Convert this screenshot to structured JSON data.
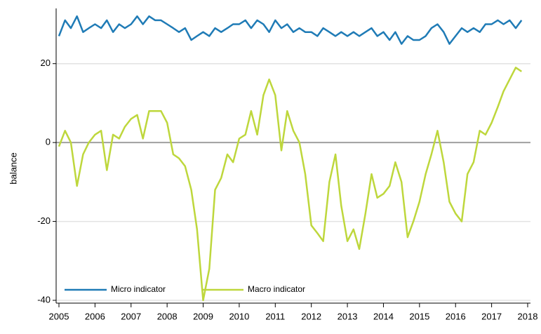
{
  "chart_data": {
    "type": "line",
    "y_label": "balance",
    "x": [
      2005.0,
      2005.17,
      2005.33,
      2005.5,
      2005.67,
      2005.83,
      2006.0,
      2006.17,
      2006.33,
      2006.5,
      2006.67,
      2006.83,
      2007.0,
      2007.17,
      2007.33,
      2007.5,
      2007.67,
      2007.83,
      2008.0,
      2008.17,
      2008.33,
      2008.5,
      2008.67,
      2008.83,
      2009.0,
      2009.17,
      2009.33,
      2009.5,
      2009.67,
      2009.83,
      2010.0,
      2010.17,
      2010.33,
      2010.5,
      2010.67,
      2010.83,
      2011.0,
      2011.17,
      2011.33,
      2011.5,
      2011.67,
      2011.83,
      2012.0,
      2012.17,
      2012.33,
      2012.5,
      2012.67,
      2012.83,
      2013.0,
      2013.17,
      2013.33,
      2013.5,
      2013.67,
      2013.83,
      2014.0,
      2014.17,
      2014.33,
      2014.5,
      2014.67,
      2014.83,
      2015.0,
      2015.17,
      2015.33,
      2015.5,
      2015.67,
      2015.83,
      2016.0,
      2016.17,
      2016.33,
      2016.5,
      2016.67,
      2016.83,
      2017.0,
      2017.17,
      2017.33,
      2017.5,
      2017.67,
      2017.83
    ],
    "series": [
      {
        "name": "Micro indicator",
        "color": "#1f7bb6",
        "values": [
          27,
          31,
          29,
          32,
          28,
          29,
          30,
          29,
          31,
          28,
          30,
          29,
          30,
          32,
          30,
          32,
          31,
          31,
          30,
          29,
          28,
          29,
          26,
          27,
          28,
          27,
          29,
          28,
          29,
          30,
          30,
          31,
          29,
          31,
          30,
          28,
          31,
          29,
          30,
          28,
          29,
          28,
          28,
          27,
          29,
          28,
          27,
          28,
          27,
          28,
          27,
          28,
          29,
          27,
          28,
          26,
          28,
          25,
          27,
          26,
          26,
          27,
          29,
          30,
          28,
          25,
          27,
          29,
          28,
          29,
          28,
          30,
          30,
          31,
          30,
          31,
          29,
          31
        ]
      },
      {
        "name": "Macro indicator",
        "color": "#bed73c",
        "values": [
          -1,
          3,
          0,
          -11,
          -3,
          0,
          2,
          3,
          -7,
          2,
          1,
          4,
          6,
          7,
          1,
          8,
          8,
          8,
          5,
          -3,
          -4,
          -6,
          -12,
          -22,
          -40,
          -32,
          -12,
          -9,
          -3,
          -5,
          1,
          2,
          8,
          2,
          12,
          16,
          12,
          -2,
          8,
          3,
          0,
          -8,
          -21,
          -23,
          -25,
          -10,
          -3,
          -16,
          -25,
          -22,
          -27,
          -18,
          -8,
          -14,
          -13,
          -11,
          -5,
          -10,
          -24,
          -20,
          -15,
          -8,
          -3,
          3,
          -5,
          -15,
          -18,
          -20,
          -8,
          -5,
          3,
          2,
          5,
          9,
          13,
          16,
          19,
          18
        ]
      }
    ],
    "xlim": [
      2005,
      2018
    ],
    "xticks": [
      2005,
      2006,
      2007,
      2008,
      2009,
      2010,
      2011,
      2012,
      2013,
      2014,
      2015,
      2016,
      2017,
      2018
    ],
    "ylim": [
      -40,
      34
    ],
    "yticks": [
      -40,
      -20,
      0,
      20
    ],
    "grid": true,
    "legend": "lower left"
  }
}
